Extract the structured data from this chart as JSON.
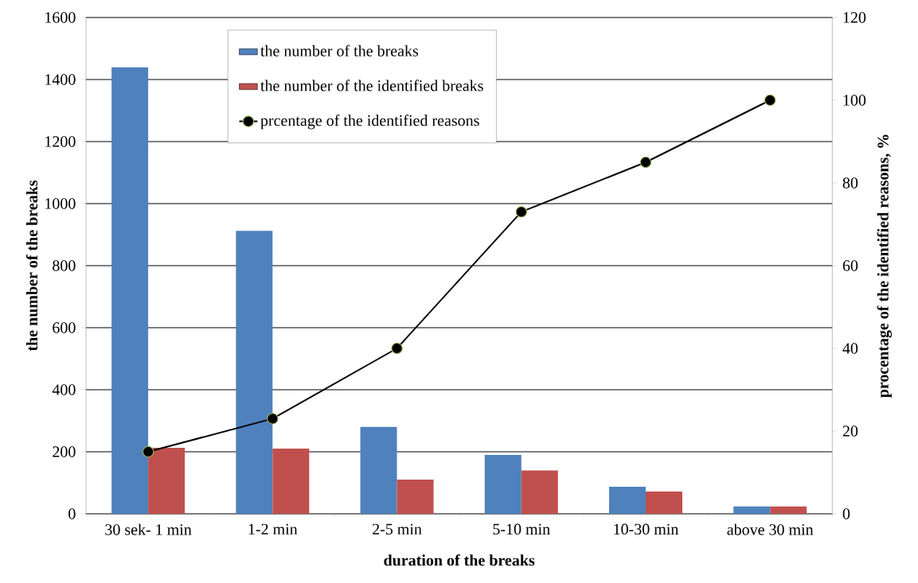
{
  "chart_data": {
    "type": "bar",
    "xlabel": "duration of the breaks",
    "ylabel": "the number of the breaks",
    "y2label": "procentage of the identified reasons, %",
    "categories": [
      "30 sek- 1 min",
      "1-2 min",
      "2-5 min",
      "5-10 min",
      "10-30 min",
      "above 30 min"
    ],
    "series": [
      {
        "name": "the number of the breaks",
        "color": "#4f81bd",
        "values": [
          1440,
          912,
          280,
          190,
          87,
          24
        ]
      },
      {
        "name": "the number of the identified breaks",
        "color": "#c0504d",
        "values": [
          213,
          210,
          110,
          140,
          72,
          24
        ]
      },
      {
        "name": "prcentage of the identified reasons",
        "type": "line",
        "axis": "y2",
        "color": "#000000",
        "marker": "circle",
        "values": [
          15,
          23,
          40,
          73,
          85,
          100
        ]
      }
    ],
    "ylim": [
      0,
      1600
    ],
    "yticks": [
      0,
      200,
      400,
      600,
      800,
      1000,
      1200,
      1400,
      1600
    ],
    "y2lim": [
      0,
      120
    ],
    "y2ticks": [
      0,
      20,
      40,
      60,
      80,
      100,
      120
    ],
    "grid": "y",
    "legend": "top"
  }
}
